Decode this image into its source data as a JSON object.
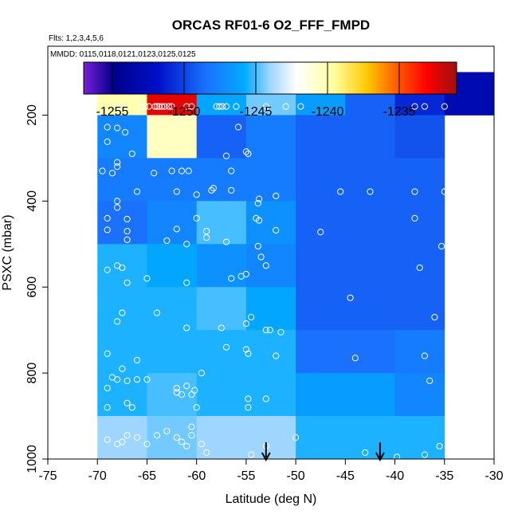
{
  "chart_data": {
    "type": "heatmap",
    "title": "ORCAS RF01-6 O2_FFF_FMPD",
    "subtitle_flights": "Flts: 1,2,3,4,5,6",
    "subtitle_dates": "MMDD: 0115,0118,0121,0123,0125,0125",
    "xlabel": "Latitude (deg N)",
    "ylabel": "PSXC (mbar)",
    "xlim": [
      -75,
      -30
    ],
    "ylim": [
      1000,
      0
    ],
    "x_ticks": [
      -75,
      -70,
      -65,
      -60,
      -55,
      -50,
      -45,
      -40,
      -35,
      -30
    ],
    "y_ticks": [
      200,
      400,
      600,
      800,
      1000
    ],
    "colorbar": {
      "min": -1257,
      "max": -1231,
      "ticks": [
        -1255,
        -1250,
        -1245,
        -1240,
        -1235
      ],
      "tick_labels": [
        "-1255",
        "-1250",
        "-1245",
        "-1240",
        "-1235"
      ]
    },
    "lat_bins": [
      -70,
      -65,
      -60,
      -55,
      -50,
      -45,
      -40,
      -35,
      -30
    ],
    "p_bins": [
      100,
      200,
      300,
      400,
      500,
      600,
      700,
      800,
      900,
      1000
    ],
    "cells": [
      [
        -1240.0,
        -1232.5,
        -1246.0,
        -1244.5,
        -1246.5,
        -1249.0,
        -1251.0,
        -1253.0
      ],
      [
        -1247.5,
        -1240.5,
        -1249.0,
        -1248.0,
        -1249.0,
        -1249.0,
        -1249.5,
        null
      ],
      [
        -1248.0,
        -1248.0,
        -1248.0,
        -1248.0,
        -1249.0,
        -1249.0,
        -1249.0,
        null
      ],
      [
        -1248.5,
        -1247.5,
        -1245.0,
        -1247.0,
        -1249.0,
        -1249.0,
        -1249.0,
        null
      ],
      [
        -1245.5,
        -1246.0,
        -1247.0,
        -1247.5,
        -1249.0,
        -1249.0,
        -1249.0,
        null
      ],
      [
        -1245.5,
        -1245.5,
        -1245.0,
        -1246.0,
        -1249.0,
        -1249.0,
        -1249.0,
        null
      ],
      [
        -1245.5,
        -1245.5,
        -1245.5,
        -1245.5,
        -1248.5,
        -1248.5,
        -1248.0,
        null
      ],
      [
        -1245.5,
        -1245.0,
        -1245.5,
        -1245.5,
        -1246.5,
        -1246.5,
        -1247.5,
        null
      ],
      [
        -1244.0,
        -1244.5,
        -1244.0,
        -1244.0,
        -1245.5,
        -1245.5,
        -1245.5,
        null
      ]
    ],
    "points": [
      [
        -68,
        180
      ],
      [
        -67.5,
        180
      ],
      [
        -65.5,
        180
      ],
      [
        -65.2,
        180
      ],
      [
        -64.8,
        180
      ],
      [
        -64.2,
        180
      ],
      [
        -64,
        180
      ],
      [
        -63.8,
        180
      ],
      [
        -63.5,
        180
      ],
      [
        -63.2,
        180
      ],
      [
        -62.8,
        180
      ],
      [
        -62.5,
        180
      ],
      [
        -61,
        180
      ],
      [
        -60.5,
        180
      ],
      [
        -58,
        180
      ],
      [
        -57.7,
        180
      ],
      [
        -57.4,
        180
      ],
      [
        -57,
        180
      ],
      [
        -56,
        180
      ],
      [
        -53,
        180
      ],
      [
        -51,
        180
      ],
      [
        -49.5,
        180
      ],
      [
        -38,
        180
      ],
      [
        -37,
        180
      ],
      [
        -35,
        180
      ],
      [
        -69,
        228
      ],
      [
        -68,
        230
      ],
      [
        -67.2,
        240
      ],
      [
        -55.8,
        228
      ],
      [
        -69,
        262
      ],
      [
        -66.5,
        290
      ],
      [
        -57,
        295
      ],
      [
        -55,
        285
      ],
      [
        -54.8,
        290
      ],
      [
        -69.5,
        330
      ],
      [
        -68.5,
        335
      ],
      [
        -68,
        310
      ],
      [
        -68,
        320
      ],
      [
        -66,
        378
      ],
      [
        -64.3,
        335
      ],
      [
        -62.5,
        330
      ],
      [
        -61.5,
        330
      ],
      [
        -60.8,
        330
      ],
      [
        -56.5,
        330
      ],
      [
        -62,
        378
      ],
      [
        -60,
        385
      ],
      [
        -58.5,
        375
      ],
      [
        -58.3,
        370
      ],
      [
        -56.5,
        375
      ],
      [
        -53.7,
        395
      ],
      [
        -53.8,
        405
      ],
      [
        -52,
        388
      ],
      [
        -45.5,
        378
      ],
      [
        -42.5,
        378
      ],
      [
        -38,
        378
      ],
      [
        -35,
        378
      ],
      [
        -68,
        400
      ],
      [
        -69,
        440
      ],
      [
        -67,
        442
      ],
      [
        -68,
        415
      ],
      [
        -69,
        467
      ],
      [
        -67,
        470
      ],
      [
        -67,
        490
      ],
      [
        -62,
        465
      ],
      [
        -59,
        470
      ],
      [
        -63,
        492
      ],
      [
        -61,
        500
      ],
      [
        -60,
        440
      ],
      [
        -59,
        485
      ],
      [
        -57,
        495
      ],
      [
        -54,
        440
      ],
      [
        -53.7,
        445
      ],
      [
        -52,
        468
      ],
      [
        -53.8,
        505
      ],
      [
        -53.5,
        530
      ],
      [
        -47.5,
        472
      ],
      [
        -38,
        440
      ],
      [
        -35.3,
        505
      ],
      [
        -69,
        560
      ],
      [
        -67.5,
        555
      ],
      [
        -68,
        550
      ],
      [
        -67,
        590
      ],
      [
        -65,
        580
      ],
      [
        -61,
        590
      ],
      [
        -56.5,
        580
      ],
      [
        -55.5,
        575
      ],
      [
        -55,
        570
      ],
      [
        -53,
        550
      ],
      [
        -44.5,
        625
      ],
      [
        -37.5,
        555
      ],
      [
        -36,
        670
      ],
      [
        -67.5,
        660
      ],
      [
        -68,
        680
      ],
      [
        -64,
        660
      ],
      [
        -61,
        695
      ],
      [
        -57.5,
        695
      ],
      [
        -55,
        685
      ],
      [
        -54.5,
        670
      ],
      [
        -53,
        700
      ],
      [
        -52.6,
        700
      ],
      [
        -51.5,
        705
      ],
      [
        -55,
        745
      ],
      [
        -54.8,
        755
      ],
      [
        -69,
        755
      ],
      [
        -68.5,
        810
      ],
      [
        -68,
        815
      ],
      [
        -69,
        835
      ],
      [
        -67,
        818
      ],
      [
        -67.5,
        790
      ],
      [
        -66,
        815
      ],
      [
        -65,
        815
      ],
      [
        -66,
        770
      ],
      [
        -62,
        835
      ],
      [
        -61,
        830
      ],
      [
        -60.2,
        840
      ],
      [
        -59.5,
        800
      ],
      [
        -57,
        740
      ],
      [
        -52,
        760
      ],
      [
        -44,
        765
      ],
      [
        -37,
        760
      ],
      [
        -36.5,
        818
      ],
      [
        -69,
        880
      ],
      [
        -67,
        870
      ],
      [
        -66.5,
        880
      ],
      [
        -62,
        845
      ],
      [
        -60.5,
        850
      ],
      [
        -60,
        880
      ],
      [
        -54.8,
        860
      ],
      [
        -54.8,
        880
      ],
      [
        -53,
        860
      ],
      [
        -61.5,
        850
      ],
      [
        -69,
        955
      ],
      [
        -67.5,
        960
      ],
      [
        -67,
        945
      ],
      [
        -66,
        950
      ],
      [
        -68,
        965
      ],
      [
        -65,
        965
      ],
      [
        -64,
        945
      ],
      [
        -63,
        935
      ],
      [
        -62,
        950
      ],
      [
        -61.5,
        960
      ],
      [
        -60.5,
        945
      ],
      [
        -59.5,
        965
      ],
      [
        -59,
        985
      ],
      [
        -61,
        970
      ],
      [
        -60.5,
        925
      ],
      [
        -54.5,
        990
      ],
      [
        -43,
        985
      ],
      [
        -39.8,
        995
      ],
      [
        -37,
        990
      ],
      [
        -35.5,
        970
      ],
      [
        -53,
        970
      ],
      [
        -50,
        950
      ]
    ],
    "arrows_lat": [
      -53,
      -41.5
    ]
  }
}
